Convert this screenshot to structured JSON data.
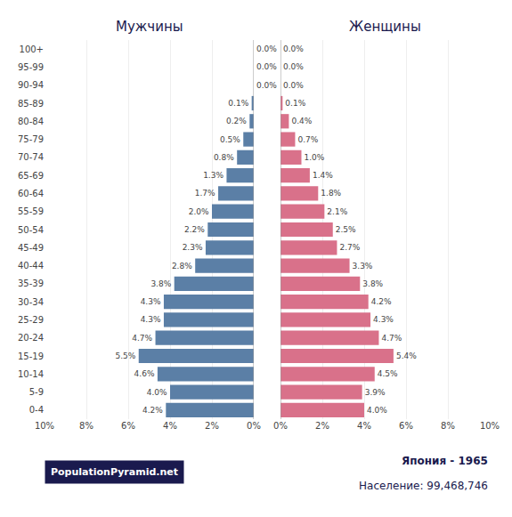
{
  "chart_data": {
    "type": "bar",
    "orientation": "horizontal",
    "categories": [
      "0-4",
      "5-9",
      "10-14",
      "15-19",
      "20-24",
      "25-29",
      "30-34",
      "35-39",
      "40-44",
      "45-49",
      "50-54",
      "55-59",
      "60-64",
      "65-69",
      "70-74",
      "75-79",
      "80-84",
      "85-89",
      "90-94",
      "95-99",
      "100+"
    ],
    "series": [
      {
        "name": "Мужчины",
        "color": "#5b7fa6",
        "values": [
          4.2,
          4.0,
          4.6,
          5.5,
          4.7,
          4.3,
          4.3,
          3.8,
          2.8,
          2.3,
          2.2,
          2.0,
          1.7,
          1.3,
          0.8,
          0.5,
          0.2,
          0.1,
          0.0,
          0.0,
          0.0
        ],
        "value_labels": [
          "4.2%",
          "4.0%",
          "4.6%",
          "5.5%",
          "4.7%",
          "4.3%",
          "4.3%",
          "3.8%",
          "2.8%",
          "2.3%",
          "2.2%",
          "2.0%",
          "1.7%",
          "1.3%",
          "0.8%",
          "0.5%",
          "0.2%",
          "0.1%",
          "0.0%",
          "0.0%",
          "0.0%"
        ]
      },
      {
        "name": "Женщины",
        "color": "#d9718a",
        "values": [
          4.0,
          3.9,
          4.5,
          5.4,
          4.7,
          4.3,
          4.2,
          3.8,
          3.3,
          2.7,
          2.5,
          2.1,
          1.8,
          1.4,
          1.0,
          0.7,
          0.4,
          0.1,
          0.0,
          0.0,
          0.0
        ],
        "value_labels": [
          "4.0%",
          "3.9%",
          "4.5%",
          "5.4%",
          "4.7%",
          "4.3%",
          "4.2%",
          "3.8%",
          "3.3%",
          "2.7%",
          "2.5%",
          "2.1%",
          "1.8%",
          "1.4%",
          "1.0%",
          "0.7%",
          "0.4%",
          "0.1%",
          "0.0%",
          "0.0%",
          "0.0%"
        ]
      }
    ],
    "xlim": [
      0,
      10
    ],
    "xticks": [
      {
        "value": 0,
        "label": "0%"
      },
      {
        "value": 2,
        "label": "2%"
      },
      {
        "value": 4,
        "label": "4%"
      },
      {
        "value": 6,
        "label": "6%"
      },
      {
        "value": 8,
        "label": "8%"
      },
      {
        "value": 10,
        "label": "10%"
      }
    ],
    "grid": true,
    "data_labels": true,
    "annotations": [
      "Япония - 1965",
      "Население: 99,468,746",
      "PopulationPyramid.net"
    ]
  }
}
